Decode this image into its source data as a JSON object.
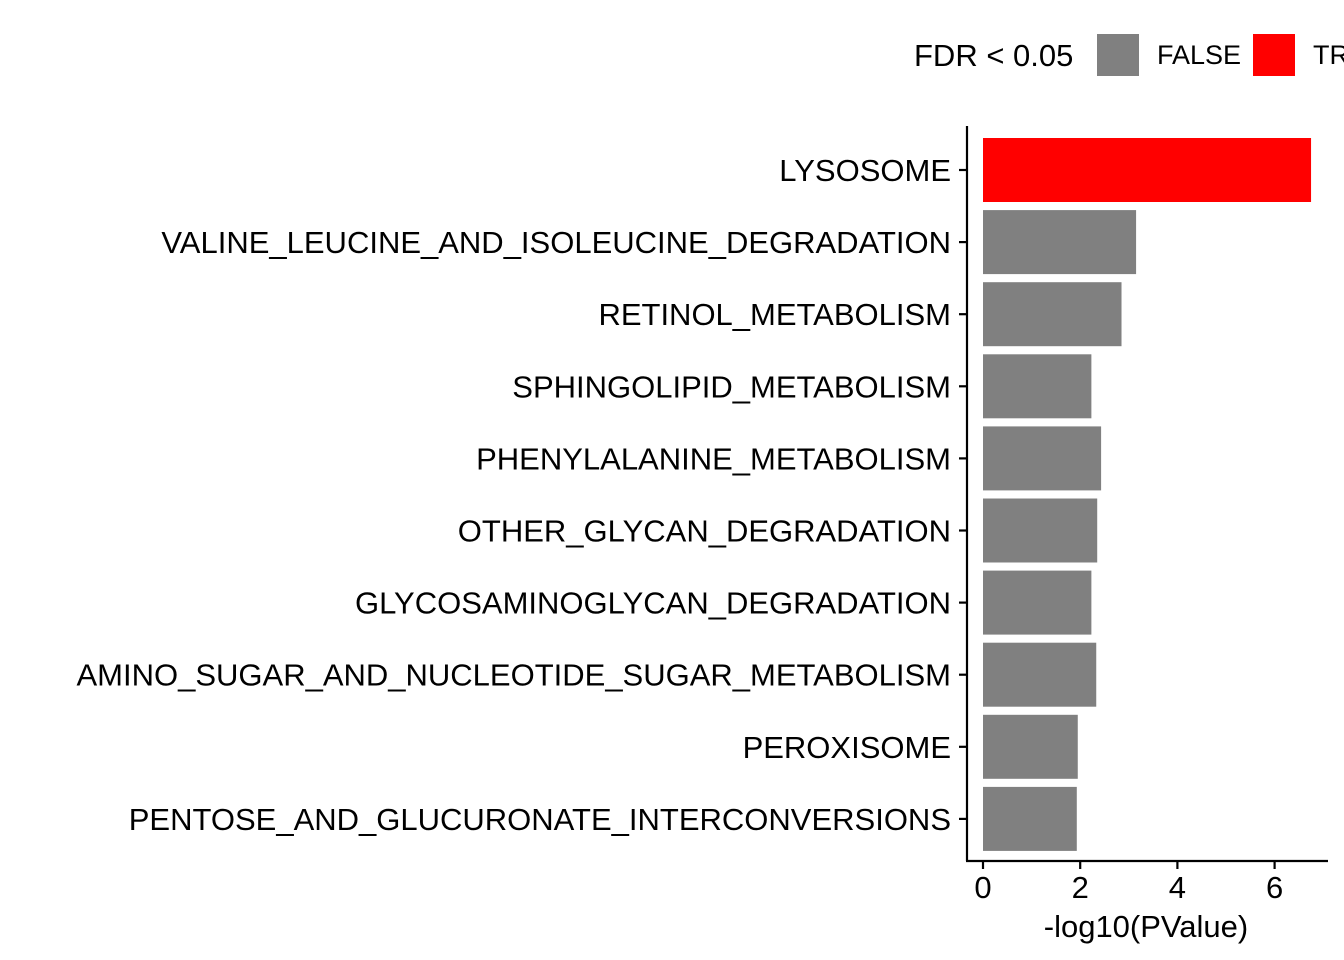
{
  "chart_data": {
    "type": "bar",
    "orientation": "horizontal",
    "categories": [
      "LYSOSOME",
      "VALINE_LEUCINE_AND_ISOLEUCINE_DEGRADATION",
      "RETINOL_METABOLISM",
      "SPHINGOLIPID_METABOLISM",
      "PHENYLALANINE_METABOLISM",
      "OTHER_GLYCAN_DEGRADATION",
      "GLYCOSAMINOGLYCAN_DEGRADATION",
      "AMINO_SUGAR_AND_NUCLEOTIDE_SUGAR_METABOLISM",
      "PEROXISOME",
      "PENTOSE_AND_GLUCURONATE_INTERCONVERSIONS"
    ],
    "values": [
      6.75,
      3.15,
      2.85,
      2.23,
      2.43,
      2.35,
      2.23,
      2.33,
      1.95,
      1.93
    ],
    "fdr_significant": [
      true,
      false,
      false,
      false,
      false,
      false,
      false,
      false,
      false,
      false
    ],
    "xlabel": "-log10(PValue)",
    "ylabel": "",
    "xlim": [
      0,
      7
    ],
    "xticks": [
      0,
      2,
      4,
      6
    ],
    "grid": false,
    "legend": {
      "title": "FDR < 0.05",
      "position": "top",
      "entries": [
        {
          "label": "FALSE",
          "color": "#808080"
        },
        {
          "label": "TRUE",
          "color": "#ff0000"
        }
      ]
    }
  }
}
